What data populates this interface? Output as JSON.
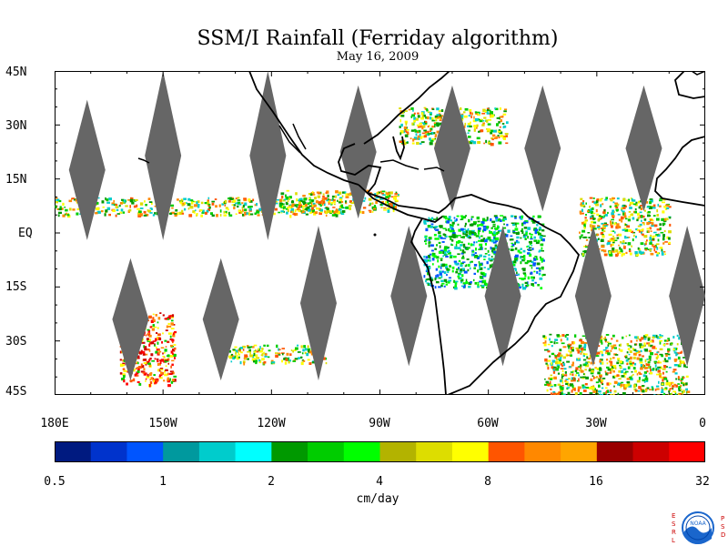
{
  "title": "SSM/I Rainfall (Ferriday algorithm)",
  "date": "May 16, 2009",
  "map": {
    "lon_range": [
      -180,
      0
    ],
    "lat_range": [
      -45,
      45
    ],
    "lat_labels": [
      "45N",
      "30N",
      "15N",
      "EQ",
      "15S",
      "30S",
      "45S"
    ],
    "lon_labels": [
      "180E",
      "150W",
      "120W",
      "90W",
      "60W",
      "30W",
      "0"
    ],
    "no_data_color": "#666666",
    "land_outline_color": "#000000",
    "swath_gaps": [
      {
        "lon": -171,
        "lat_top": 37,
        "lat_bottom": -2
      },
      {
        "lon": -150,
        "lat_top": 45,
        "lat_bottom": -2
      },
      {
        "lon": -121,
        "lat_top": 45,
        "lat_bottom": -2
      },
      {
        "lon": -96,
        "lat_top": 41,
        "lat_bottom": 4
      },
      {
        "lon": -70,
        "lat_top": 41,
        "lat_bottom": 6
      },
      {
        "lon": -45,
        "lat_top": 41,
        "lat_bottom": 6
      },
      {
        "lon": -17,
        "lat_top": 41,
        "lat_bottom": 6
      },
      {
        "lon": -159,
        "lat_top": -7,
        "lat_bottom": -41
      },
      {
        "lon": -134,
        "lat_top": -7,
        "lat_bottom": -41
      },
      {
        "lon": -107,
        "lat_top": 2,
        "lat_bottom": -41
      },
      {
        "lon": -82,
        "lat_top": 2,
        "lat_bottom": -37
      },
      {
        "lon": -56,
        "lat_top": 2,
        "lat_bottom": -37
      },
      {
        "lon": -31,
        "lat_top": 2,
        "lat_bottom": -37
      },
      {
        "lon": -5,
        "lat_top": 2,
        "lat_bottom": -37
      }
    ],
    "rain_regions": [
      {
        "name": "itcz-west-pacific",
        "lon": [
          -180,
          -100
        ],
        "lat": [
          5,
          10
        ],
        "intensity": "moderate"
      },
      {
        "name": "itcz-east-pacific",
        "lon": [
          -118,
          -85
        ],
        "lat": [
          6,
          12
        ],
        "intensity": "moderate"
      },
      {
        "name": "south-pacific-convergence",
        "lon": [
          -162,
          -147
        ],
        "lat": [
          -42,
          -22
        ],
        "intensity": "heavy"
      },
      {
        "name": "south-pacific-midlatitude",
        "lon": [
          -132,
          -105
        ],
        "lat": [
          -36,
          -31
        ],
        "intensity": "moderate"
      },
      {
        "name": "gulf-mexico-atlantic",
        "lon": [
          -85,
          -55
        ],
        "lat": [
          25,
          35
        ],
        "intensity": "moderate"
      },
      {
        "name": "amazon",
        "lon": [
          -78,
          -45
        ],
        "lat": [
          -15,
          5
        ],
        "intensity": "light"
      },
      {
        "name": "south-atlantic",
        "lon": [
          -45,
          -5
        ],
        "lat": [
          -45,
          -28
        ],
        "intensity": "moderate"
      },
      {
        "name": "tropical-atlantic",
        "lon": [
          -35,
          -10
        ],
        "lat": [
          -6,
          10
        ],
        "intensity": "moderate"
      }
    ]
  },
  "colorbar": {
    "unit_label": "cm/day",
    "tick_labels": [
      "0.5",
      "1",
      "2",
      "4",
      "8",
      "16",
      "32"
    ],
    "colors": [
      "#001a80",
      "#0033cc",
      "#0055ff",
      "#00999e",
      "#00cccc",
      "#00ffff",
      "#009900",
      "#00cc00",
      "#00ff00",
      "#b3b300",
      "#dddd00",
      "#ffff00",
      "#ff5500",
      "#ff8800",
      "#ffa500",
      "#990000",
      "#cc0000",
      "#ff0000"
    ]
  },
  "logo": {
    "left_letters": "ESRL",
    "right_letters": "PSD",
    "center_text": "NOAA",
    "ring_color": "#1a66cc"
  }
}
